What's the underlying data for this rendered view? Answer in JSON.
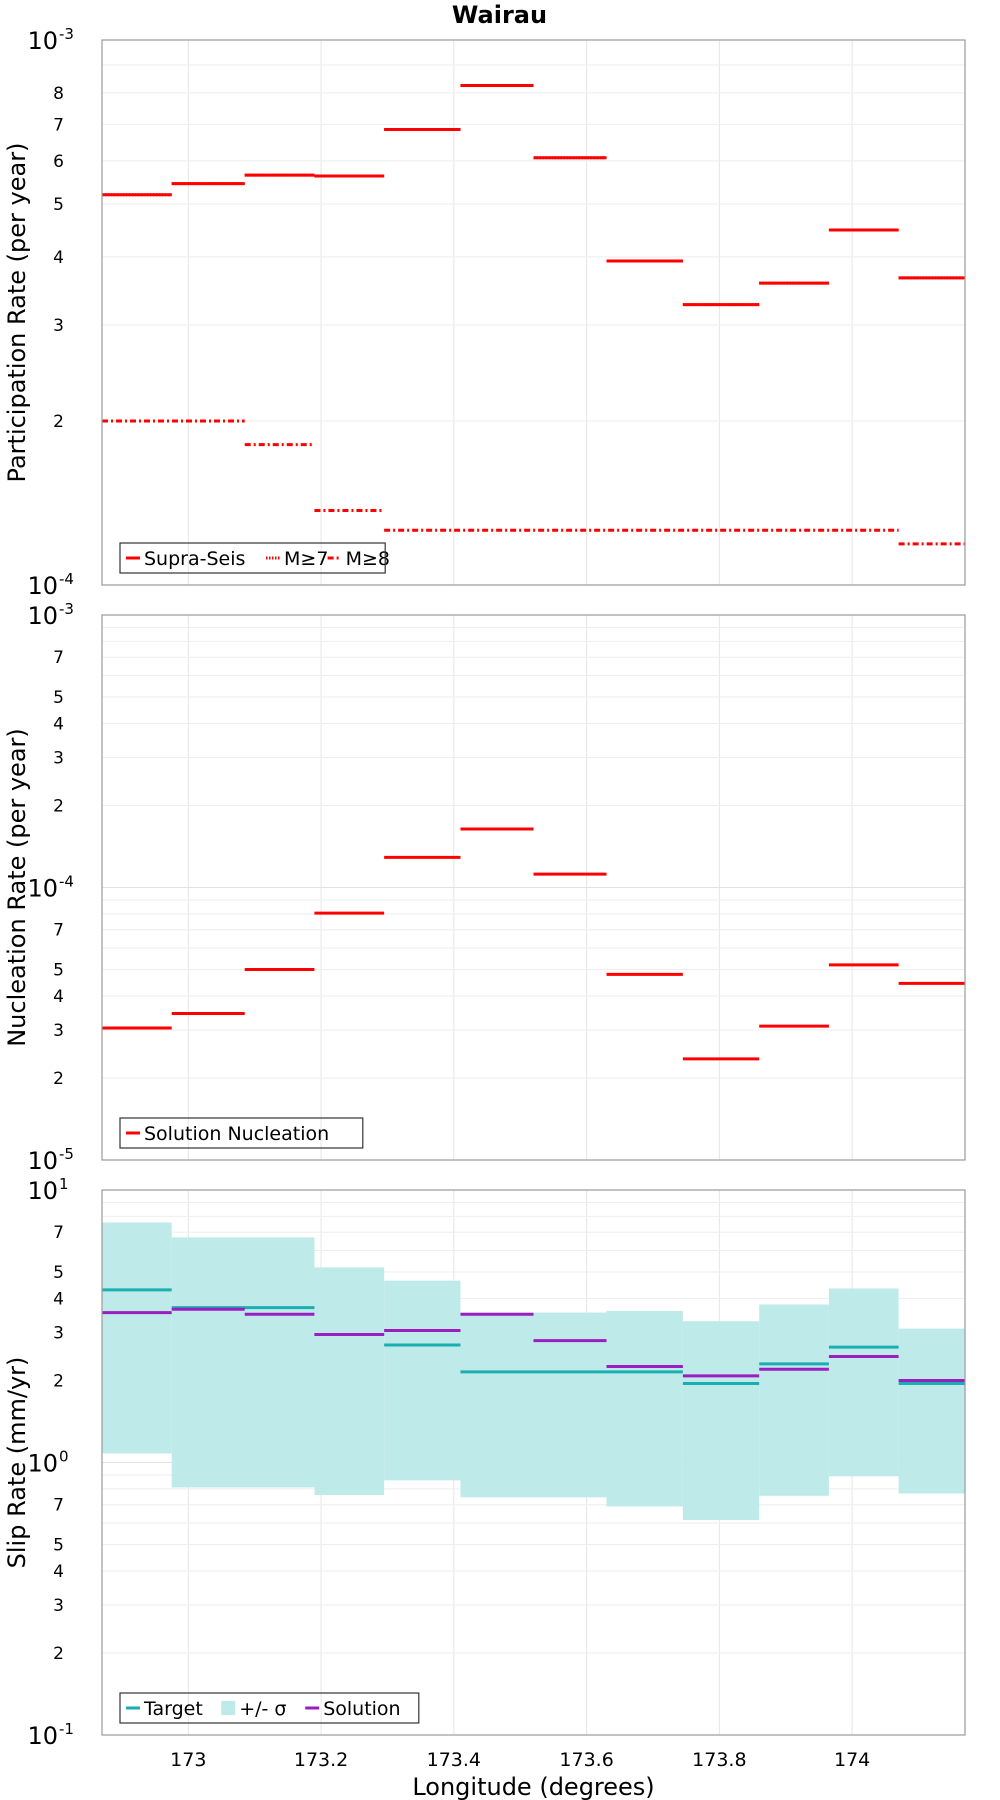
{
  "chart_data": [
    {
      "type": "line",
      "title": "Wairau",
      "xlabel": "",
      "ylabel": "Participation Rate (per year)",
      "yscale": "log",
      "ylim": [
        0.0001,
        0.001
      ],
      "xlim": [
        172.87,
        174.17
      ],
      "grid": true,
      "legend_position": "bottom-left",
      "series": [
        {
          "name": "Supra-Seis",
          "style": "solid",
          "color": "#ff0000",
          "segments": [
            {
              "x": [
                172.87,
                172.975
              ],
              "y": 0.00052
            },
            {
              "x": [
                172.975,
                173.085
              ],
              "y": 0.000545
            },
            {
              "x": [
                173.085,
                173.19
              ],
              "y": 0.000565
            },
            {
              "x": [
                173.19,
                173.295
              ],
              "y": 0.000563
            },
            {
              "x": [
                173.295,
                173.41
              ],
              "y": 0.000685
            },
            {
              "x": [
                173.41,
                173.52
              ],
              "y": 0.000825
            },
            {
              "x": [
                173.52,
                173.63
              ],
              "y": 0.000608
            },
            {
              "x": [
                173.63,
                173.745
              ],
              "y": 0.000393
            },
            {
              "x": [
                173.745,
                173.86
              ],
              "y": 0.000327
            },
            {
              "x": [
                173.86,
                173.965
              ],
              "y": 0.000358
            },
            {
              "x": [
                173.965,
                174.07
              ],
              "y": 0.000448
            },
            {
              "x": [
                174.07,
                174.17
              ],
              "y": 0.000366
            }
          ]
        },
        {
          "name": "M≥7",
          "style": "dotted",
          "color": "#ff0000",
          "segments": [
            {
              "x": [
                172.87,
                172.975
              ],
              "y": 0.00052
            },
            {
              "x": [
                172.975,
                173.085
              ],
              "y": 0.000545
            },
            {
              "x": [
                173.085,
                173.19
              ],
              "y": 0.000565
            },
            {
              "x": [
                173.19,
                173.295
              ],
              "y": 0.000563
            },
            {
              "x": [
                173.295,
                173.41
              ],
              "y": 0.000685
            },
            {
              "x": [
                173.41,
                173.52
              ],
              "y": 0.000825
            },
            {
              "x": [
                173.52,
                173.63
              ],
              "y": 0.000608
            },
            {
              "x": [
                173.63,
                173.745
              ],
              "y": 0.000393
            },
            {
              "x": [
                173.745,
                173.86
              ],
              "y": 0.000327
            },
            {
              "x": [
                173.86,
                173.965
              ],
              "y": 0.000358
            },
            {
              "x": [
                173.965,
                174.07
              ],
              "y": 0.000448
            },
            {
              "x": [
                174.07,
                174.17
              ],
              "y": 0.000366
            }
          ]
        },
        {
          "name": "M≥8",
          "style": "dashdot",
          "color": "#ff0000",
          "segments": [
            {
              "x": [
                172.87,
                173.085
              ],
              "y": 0.0002
            },
            {
              "x": [
                173.085,
                173.19
              ],
              "y": 0.000181
            },
            {
              "x": [
                173.19,
                173.295
              ],
              "y": 0.000137
            },
            {
              "x": [
                173.295,
                174.07
              ],
              "y": 0.000126
            },
            {
              "x": [
                174.07,
                174.17
              ],
              "y": 0.000119
            }
          ]
        }
      ],
      "y_ticks": {
        "major": [
          {
            "v": 0.0001,
            "base": "10",
            "exp": "-4"
          },
          {
            "v": 0.001,
            "base": "10",
            "exp": "-3"
          }
        ],
        "minor": [
          {
            "v": 0.0002,
            "label": "2"
          },
          {
            "v": 0.0003,
            "label": "3"
          },
          {
            "v": 0.0004,
            "label": "4"
          },
          {
            "v": 0.0005,
            "label": "5"
          },
          {
            "v": 0.0006,
            "label": "6"
          },
          {
            "v": 0.0007,
            "label": "7"
          },
          {
            "v": 0.0008,
            "label": "8"
          },
          {
            "v": 0.0009,
            "label": ""
          }
        ]
      }
    },
    {
      "type": "line",
      "title": "",
      "xlabel": "",
      "ylabel": "Nucleation Rate (per year)",
      "yscale": "log",
      "ylim": [
        1e-05,
        0.001
      ],
      "xlim": [
        172.87,
        174.17
      ],
      "grid": true,
      "legend_position": "bottom-left",
      "series": [
        {
          "name": "Solution Nucleation",
          "style": "solid",
          "color": "#ff0000",
          "segments": [
            {
              "x": [
                172.87,
                172.975
              ],
              "y": 3.05e-05
            },
            {
              "x": [
                172.975,
                173.085
              ],
              "y": 3.45e-05
            },
            {
              "x": [
                173.085,
                173.19
              ],
              "y": 5e-05
            },
            {
              "x": [
                173.19,
                173.295
              ],
              "y": 8.05e-05
            },
            {
              "x": [
                173.295,
                173.41
              ],
              "y": 0.000129
            },
            {
              "x": [
                173.41,
                173.52
              ],
              "y": 0.000164
            },
            {
              "x": [
                173.52,
                173.63
              ],
              "y": 0.000112
            },
            {
              "x": [
                173.63,
                173.745
              ],
              "y": 4.8e-05
            },
            {
              "x": [
                173.745,
                173.86
              ],
              "y": 2.35e-05
            },
            {
              "x": [
                173.86,
                173.965
              ],
              "y": 3.1e-05
            },
            {
              "x": [
                173.965,
                174.07
              ],
              "y": 5.2e-05
            },
            {
              "x": [
                174.07,
                174.17
              ],
              "y": 4.45e-05
            }
          ]
        }
      ],
      "y_ticks": {
        "major": [
          {
            "v": 1e-05,
            "base": "10",
            "exp": "-5"
          },
          {
            "v": 0.0001,
            "base": "10",
            "exp": "-4"
          },
          {
            "v": 0.001,
            "base": "10",
            "exp": "-3"
          }
        ],
        "minor": [
          {
            "v": 2e-05,
            "label": "2"
          },
          {
            "v": 3e-05,
            "label": "3"
          },
          {
            "v": 4e-05,
            "label": "4"
          },
          {
            "v": 5e-05,
            "label": "5"
          },
          {
            "v": 6e-05,
            "label": ""
          },
          {
            "v": 7e-05,
            "label": "7"
          },
          {
            "v": 8e-05,
            "label": ""
          },
          {
            "v": 9e-05,
            "label": ""
          },
          {
            "v": 0.0002,
            "label": "2"
          },
          {
            "v": 0.0003,
            "label": "3"
          },
          {
            "v": 0.0004,
            "label": "4"
          },
          {
            "v": 0.0005,
            "label": "5"
          },
          {
            "v": 0.0006,
            "label": ""
          },
          {
            "v": 0.0007,
            "label": "7"
          },
          {
            "v": 0.0008,
            "label": ""
          },
          {
            "v": 0.0009,
            "label": ""
          }
        ]
      }
    },
    {
      "type": "area",
      "title": "",
      "xlabel": "Longitude (degrees)",
      "ylabel": "Slip Rate (mm/yr)",
      "yscale": "log",
      "ylim": [
        0.1,
        10
      ],
      "xlim": [
        172.87,
        174.17
      ],
      "grid": true,
      "legend_position": "bottom-left",
      "x_ticks": [
        {
          "v": 173,
          "label": "173"
        },
        {
          "v": 173.2,
          "label": "173.2"
        },
        {
          "v": 173.4,
          "label": "173.4"
        },
        {
          "v": 173.6,
          "label": "173.6"
        },
        {
          "v": 173.8,
          "label": "173.8"
        },
        {
          "v": 174,
          "label": "174"
        }
      ],
      "band": {
        "name": "+/- σ",
        "color": "#bfeaea",
        "segments": [
          {
            "x": [
              172.87,
              172.975
            ],
            "lo": 1.08,
            "hi": 7.6
          },
          {
            "x": [
              172.975,
              173.19
            ],
            "lo": 0.81,
            "hi": 6.7
          },
          {
            "x": [
              173.19,
              173.295
            ],
            "lo": 0.76,
            "hi": 5.2
          },
          {
            "x": [
              173.295,
              173.41
            ],
            "lo": 0.86,
            "hi": 4.65
          },
          {
            "x": [
              173.41,
              173.63
            ],
            "lo": 0.745,
            "hi": 3.55
          },
          {
            "x": [
              173.63,
              173.745
            ],
            "lo": 0.69,
            "hi": 3.6
          },
          {
            "x": [
              173.745,
              173.86
            ],
            "lo": 0.615,
            "hi": 3.3
          },
          {
            "x": [
              173.86,
              173.965
            ],
            "lo": 0.755,
            "hi": 3.8
          },
          {
            "x": [
              173.965,
              174.07
            ],
            "lo": 0.89,
            "hi": 4.35
          },
          {
            "x": [
              174.07,
              174.17
            ],
            "lo": 0.77,
            "hi": 3.1
          }
        ]
      },
      "series": [
        {
          "name": "Target",
          "style": "solid",
          "color": "#1aaeb0",
          "segments": [
            {
              "x": [
                172.87,
                172.975
              ],
              "y": 4.3
            },
            {
              "x": [
                172.975,
                173.19
              ],
              "y": 3.7
            },
            {
              "x": [
                173.19,
                173.295
              ],
              "y": 2.95
            },
            {
              "x": [
                173.295,
                173.41
              ],
              "y": 2.7
            },
            {
              "x": [
                173.41,
                173.745
              ],
              "y": 2.15
            },
            {
              "x": [
                173.745,
                173.86
              ],
              "y": 1.95
            },
            {
              "x": [
                173.86,
                173.965
              ],
              "y": 2.3
            },
            {
              "x": [
                173.965,
                174.07
              ],
              "y": 2.65
            },
            {
              "x": [
                174.07,
                174.17
              ],
              "y": 1.95
            }
          ]
        },
        {
          "name": "Solution",
          "style": "solid",
          "color": "#9b1fc0",
          "segments": [
            {
              "x": [
                172.87,
                172.975
              ],
              "y": 3.55
            },
            {
              "x": [
                172.975,
                173.085
              ],
              "y": 3.65
            },
            {
              "x": [
                173.085,
                173.19
              ],
              "y": 3.5
            },
            {
              "x": [
                173.19,
                173.295
              ],
              "y": 2.95
            },
            {
              "x": [
                173.295,
                173.41
              ],
              "y": 3.05
            },
            {
              "x": [
                173.41,
                173.52
              ],
              "y": 3.5
            },
            {
              "x": [
                173.52,
                173.63
              ],
              "y": 2.8
            },
            {
              "x": [
                173.63,
                173.745
              ],
              "y": 2.25
            },
            {
              "x": [
                173.745,
                173.86
              ],
              "y": 2.08
            },
            {
              "x": [
                173.86,
                173.965
              ],
              "y": 2.2
            },
            {
              "x": [
                173.965,
                174.07
              ],
              "y": 2.45
            },
            {
              "x": [
                174.07,
                174.17
              ],
              "y": 2.0
            }
          ]
        }
      ],
      "y_ticks": {
        "major": [
          {
            "v": 0.1,
            "base": "10",
            "exp": "-1"
          },
          {
            "v": 1,
            "base": "10",
            "exp": "0"
          },
          {
            "v": 10,
            "base": "10",
            "exp": "1"
          }
        ],
        "minor": [
          {
            "v": 0.2,
            "label": "2"
          },
          {
            "v": 0.3,
            "label": "3"
          },
          {
            "v": 0.4,
            "label": "4"
          },
          {
            "v": 0.5,
            "label": "5"
          },
          {
            "v": 0.6,
            "label": ""
          },
          {
            "v": 0.7,
            "label": "7"
          },
          {
            "v": 0.8,
            "label": ""
          },
          {
            "v": 0.9,
            "label": ""
          },
          {
            "v": 2,
            "label": "2"
          },
          {
            "v": 3,
            "label": "3"
          },
          {
            "v": 4,
            "label": "4"
          },
          {
            "v": 5,
            "label": "5"
          },
          {
            "v": 6,
            "label": ""
          },
          {
            "v": 7,
            "label": "7"
          },
          {
            "v": 8,
            "label": ""
          },
          {
            "v": 9,
            "label": ""
          }
        ]
      }
    }
  ]
}
